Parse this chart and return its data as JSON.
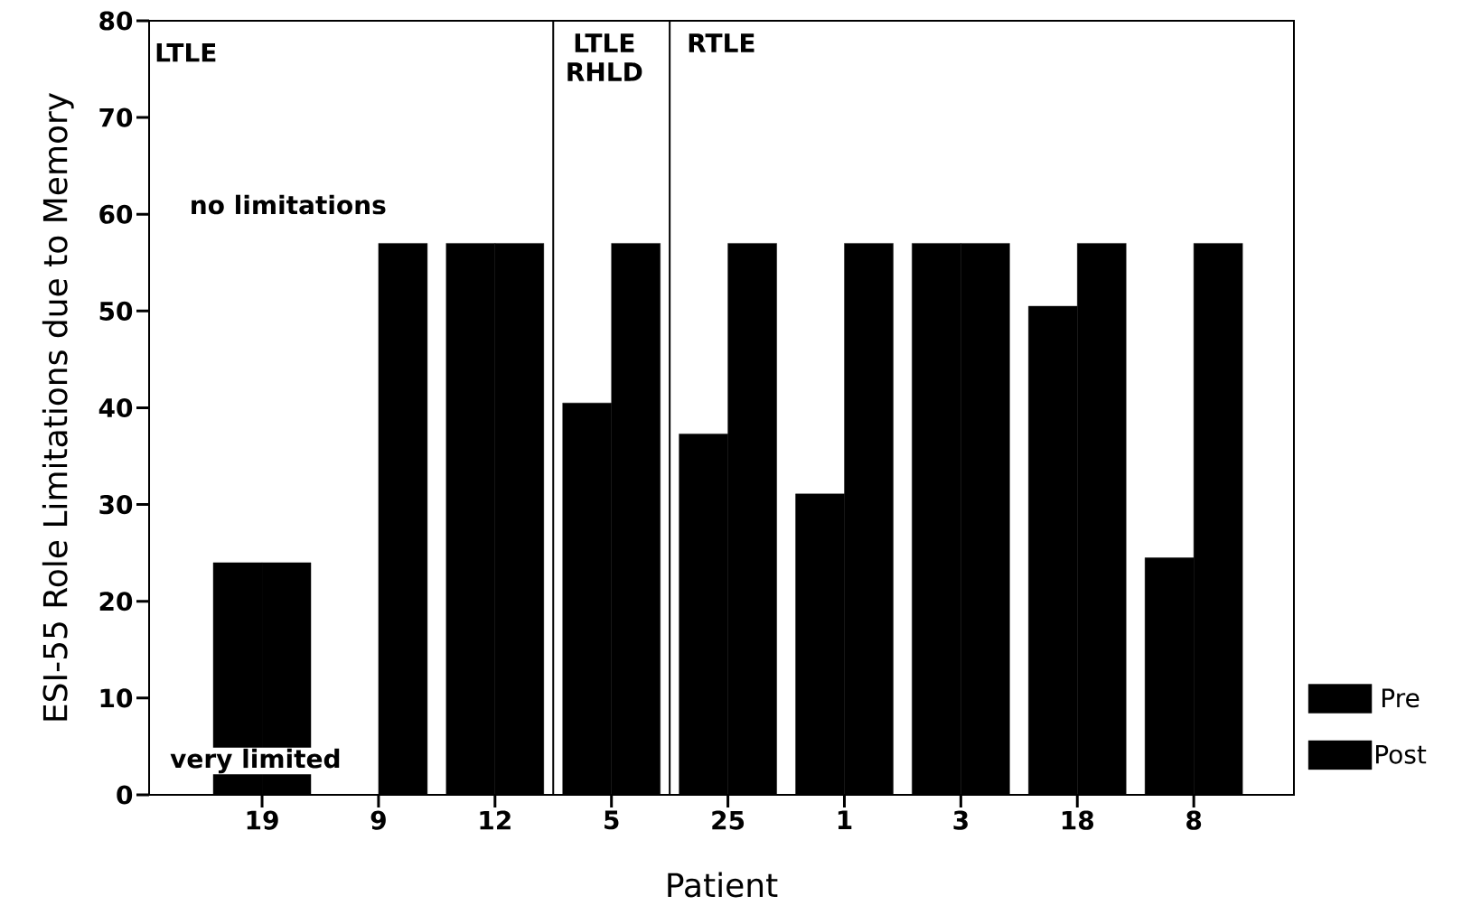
{
  "chart_data": {
    "type": "bar",
    "xlabel": "Patient",
    "ylabel": "ESI-55 Role Limitations due to Memory",
    "categories": [
      "19",
      "9",
      "12",
      "5",
      "25",
      "1",
      "3",
      "18",
      "8"
    ],
    "series": [
      {
        "name": "Pre",
        "color": "#000000",
        "values": [
          24,
          0,
          57,
          40.5,
          37.3,
          31.1,
          57,
          50.5,
          24.5
        ]
      },
      {
        "name": "Post",
        "color": "#000000",
        "values": [
          24,
          57,
          57,
          57,
          57,
          57,
          57,
          57,
          57
        ]
      }
    ],
    "ylim": [
      0,
      80
    ],
    "yticks": [
      0,
      10,
      20,
      30,
      40,
      50,
      60,
      70,
      80
    ],
    "annotations": [
      "LTLE",
      "LTLE RHLD",
      "RTLE",
      "no limitations",
      "very limited"
    ],
    "legend": "right",
    "grid": false
  }
}
